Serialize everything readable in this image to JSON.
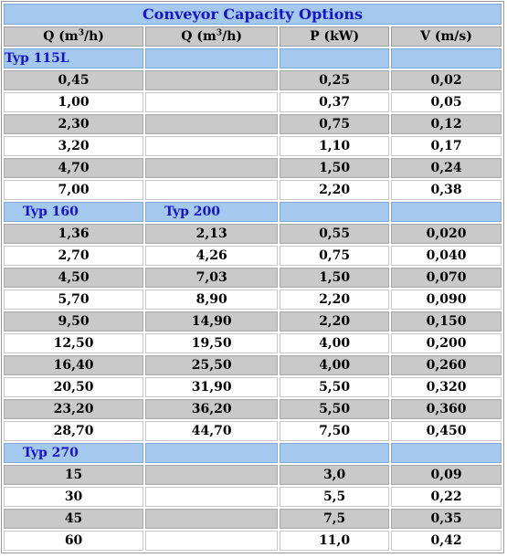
{
  "title": "Conveyor Capacity Options",
  "headers": [
    "Q (m",
    "3",
    "/h)",
    "P (kW)",
    "V (m/s)"
  ],
  "groups": [
    {
      "labels": [
        "Typ 115L",
        ""
      ],
      "rows": [
        [
          "0,45",
          "",
          "0,25",
          "0,02"
        ],
        [
          "1,00",
          "",
          "0,37",
          "0,05"
        ],
        [
          "2,30",
          "",
          "0,75",
          "0,12"
        ],
        [
          "3,20",
          "",
          "1,10",
          "0,17"
        ],
        [
          "4,70",
          "",
          "1,50",
          "0,24"
        ],
        [
          "7,00",
          "",
          "2,20",
          "0,38"
        ]
      ]
    },
    {
      "labels": [
        "Typ 160",
        "Typ 200"
      ],
      "rows": [
        [
          "1,36",
          "2,13",
          "0,55",
          "0,020"
        ],
        [
          "2,70",
          "4,26",
          "0,75",
          "0,040"
        ],
        [
          "4,50",
          "7,03",
          "1,50",
          "0,070"
        ],
        [
          "5,70",
          "8,90",
          "2,20",
          "0,090"
        ],
        [
          "9,50",
          "14,90",
          "2,20",
          "0,150"
        ],
        [
          "12,50",
          "19,50",
          "4,00",
          "0,200"
        ],
        [
          "16,40",
          "25,50",
          "4,00",
          "0,260"
        ],
        [
          "20,50",
          "31,90",
          "5,50",
          "0,320"
        ],
        [
          "23,20",
          "36,20",
          "5,50",
          "0,360"
        ],
        [
          "28,70",
          "44,70",
          "7,50",
          "0,450"
        ]
      ]
    },
    {
      "labels": [
        "Typ 270",
        ""
      ],
      "rows": [
        [
          "15",
          "",
          "3,0",
          "0,09"
        ],
        [
          "30",
          "",
          "5,5",
          "0,22"
        ],
        [
          "45",
          "",
          "7,5",
          "0,35"
        ],
        [
          "60",
          "",
          "11,0",
          "0,42"
        ]
      ]
    }
  ]
}
